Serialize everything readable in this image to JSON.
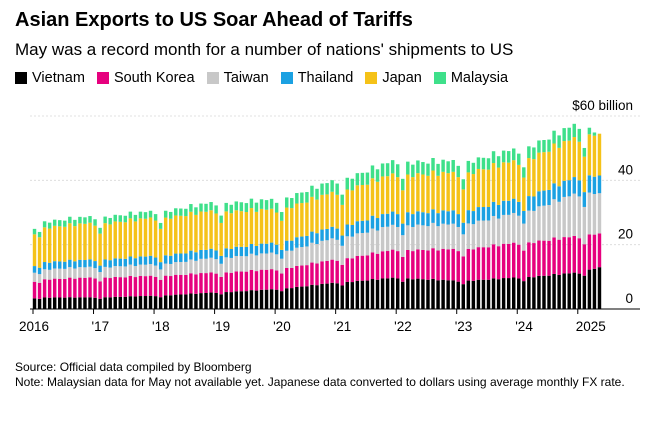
{
  "chart_data": {
    "type": "bar",
    "stacked": true,
    "title": "Asian Exports to US Soar Ahead of Tariffs",
    "subtitle": "May was a record month for a number of nations' shipments to US",
    "ylabel": "",
    "y_unit": "$ billion",
    "ylim": [
      0,
      60
    ],
    "y_ticks": [
      {
        "value": 60,
        "label": "$60 billion"
      },
      {
        "value": 40,
        "label": "40"
      },
      {
        "value": 20,
        "label": "20"
      },
      {
        "value": 0,
        "label": "0"
      }
    ],
    "x_ticks": [
      {
        "value": "2016-01",
        "label": "2016"
      },
      {
        "value": "2017-01",
        "label": "'17"
      },
      {
        "value": "2018-01",
        "label": "'18"
      },
      {
        "value": "2019-01",
        "label": "'19"
      },
      {
        "value": "2020-01",
        "label": "'20"
      },
      {
        "value": "2021-01",
        "label": "'21"
      },
      {
        "value": "2022-01",
        "label": "'22"
      },
      {
        "value": "2023-01",
        "label": "'23"
      },
      {
        "value": "2024-01",
        "label": "'24"
      },
      {
        "value": "2025-01",
        "label": "2025"
      }
    ],
    "grid": "horizontal",
    "legend_position": "top-left",
    "x_start": "2016-01",
    "x_end": "2025-05",
    "anchors": [
      {
        "date": "2016-01",
        "Vietnam": 3.5,
        "South Korea": 5.5,
        "Taiwan": 3.0,
        "Thailand": 2.2,
        "Japan": 10.5,
        "Malaysia": 1.8
      },
      {
        "date": "2017-01",
        "Vietnam": 3.5,
        "South Korea": 6.0,
        "Taiwan": 3.2,
        "Thailand": 2.2,
        "Japan": 11.0,
        "Malaysia": 2.0
      },
      {
        "date": "2018-01",
        "Vietnam": 4.0,
        "South Korea": 6.0,
        "Taiwan": 3.5,
        "Thailand": 2.5,
        "Japan": 11.5,
        "Malaysia": 2.0
      },
      {
        "date": "2019-01",
        "Vietnam": 5.0,
        "South Korea": 6.0,
        "Taiwan": 4.5,
        "Thailand": 2.7,
        "Japan": 11.5,
        "Malaysia": 2.5
      },
      {
        "date": "2020-01",
        "Vietnam": 6.0,
        "South Korea": 6.0,
        "Taiwan": 5.0,
        "Thailand": 3.0,
        "Japan": 10.0,
        "Malaysia": 3.0
      },
      {
        "date": "2021-01",
        "Vietnam": 8.0,
        "South Korea": 7.0,
        "Taiwan": 6.5,
        "Thailand": 3.5,
        "Japan": 10.5,
        "Malaysia": 3.5
      },
      {
        "date": "2022-01",
        "Vietnam": 9.5,
        "South Korea": 8.5,
        "Taiwan": 7.5,
        "Thailand": 4.0,
        "Japan": 11.5,
        "Malaysia": 4.0
      },
      {
        "date": "2023-01",
        "Vietnam": 8.5,
        "South Korea": 9.5,
        "Taiwan": 7.5,
        "Thailand": 4.0,
        "Japan": 11.5,
        "Malaysia": 3.5
      },
      {
        "date": "2024-01",
        "Vietnam": 9.5,
        "South Korea": 10.5,
        "Taiwan": 9.0,
        "Thailand": 4.3,
        "Japan": 11.5,
        "Malaysia": 3.5
      },
      {
        "date": "2025-01",
        "Vietnam": 11.0,
        "South Korea": 11.0,
        "Taiwan": 13.0,
        "Thailand": 5.0,
        "Japan": 12.0,
        "Malaysia": 4.0
      },
      {
        "date": "2025-05",
        "Vietnam": 13.0,
        "South Korea": 10.5,
        "Taiwan": 12.5,
        "Thailand": 5.5,
        "Japan": 13.0,
        "Malaysia": 0
      }
    ],
    "series": [
      {
        "name": "Vietnam",
        "color": "#000000"
      },
      {
        "name": "South Korea",
        "color": "#e6007e"
      },
      {
        "name": "Taiwan",
        "color": "#c8c8c8"
      },
      {
        "name": "Thailand",
        "color": "#1ba1e2"
      },
      {
        "name": "Japan",
        "color": "#f5c218"
      },
      {
        "name": "Malaysia",
        "color": "#3ee08a"
      }
    ]
  },
  "footer": {
    "source": "Source: Official data compiled by Bloomberg",
    "note": "Note: Malaysian data for May not available yet. Japanese data converted to dollars using average monthly FX rate."
  }
}
